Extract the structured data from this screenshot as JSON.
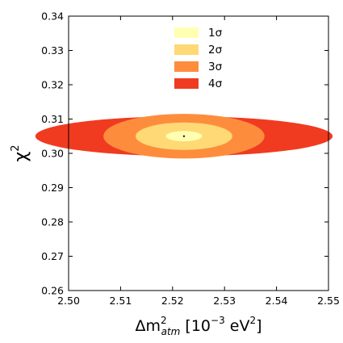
{
  "chart_data": {
    "type": "contour",
    "xlabel_parts": {
      "prefix": "Δm",
      "sup": "2",
      "sub": "atm",
      "bracket_open": " [10",
      "exp": "−3",
      "unit": " eV",
      "unit_exp": "2",
      "bracket_close": "]"
    },
    "ylabel": "χ",
    "ylabel_exp": "2",
    "xlim": [
      2.5,
      2.55
    ],
    "ylim": [
      0.26,
      0.34
    ],
    "x_ticks": [
      2.5,
      2.51,
      2.52,
      2.53,
      2.54,
      2.55
    ],
    "x_tick_labels": [
      "2.50",
      "2.51",
      "2.52",
      "2.53",
      "2.54",
      "2.55"
    ],
    "y_ticks": [
      0.26,
      0.27,
      0.28,
      0.29,
      0.3,
      0.31,
      0.32,
      0.33,
      0.34
    ],
    "y_tick_labels": [
      "0.26",
      "0.27",
      "0.28",
      "0.29",
      "0.30",
      "0.31",
      "0.32",
      "0.33",
      "0.34"
    ],
    "best_fit": {
      "x": 2.5222,
      "y": 0.305
    },
    "contours": [
      {
        "name": "1σ",
        "color": "#ffffb2",
        "x_half_width": 0.0035,
        "y_half_width": 0.0015
      },
      {
        "name": "2σ",
        "color": "#fed976",
        "x_half_width": 0.0093,
        "y_half_width": 0.004
      },
      {
        "name": "3σ",
        "color": "#fd8d3c",
        "x_half_width": 0.0155,
        "y_half_width": 0.0065
      },
      {
        "name": "4σ",
        "color": "#f03b20",
        "x_half_width": 0.0286,
        "y_half_width": 0.0058
      }
    ],
    "legend_position": "top-center",
    "grid": false
  }
}
